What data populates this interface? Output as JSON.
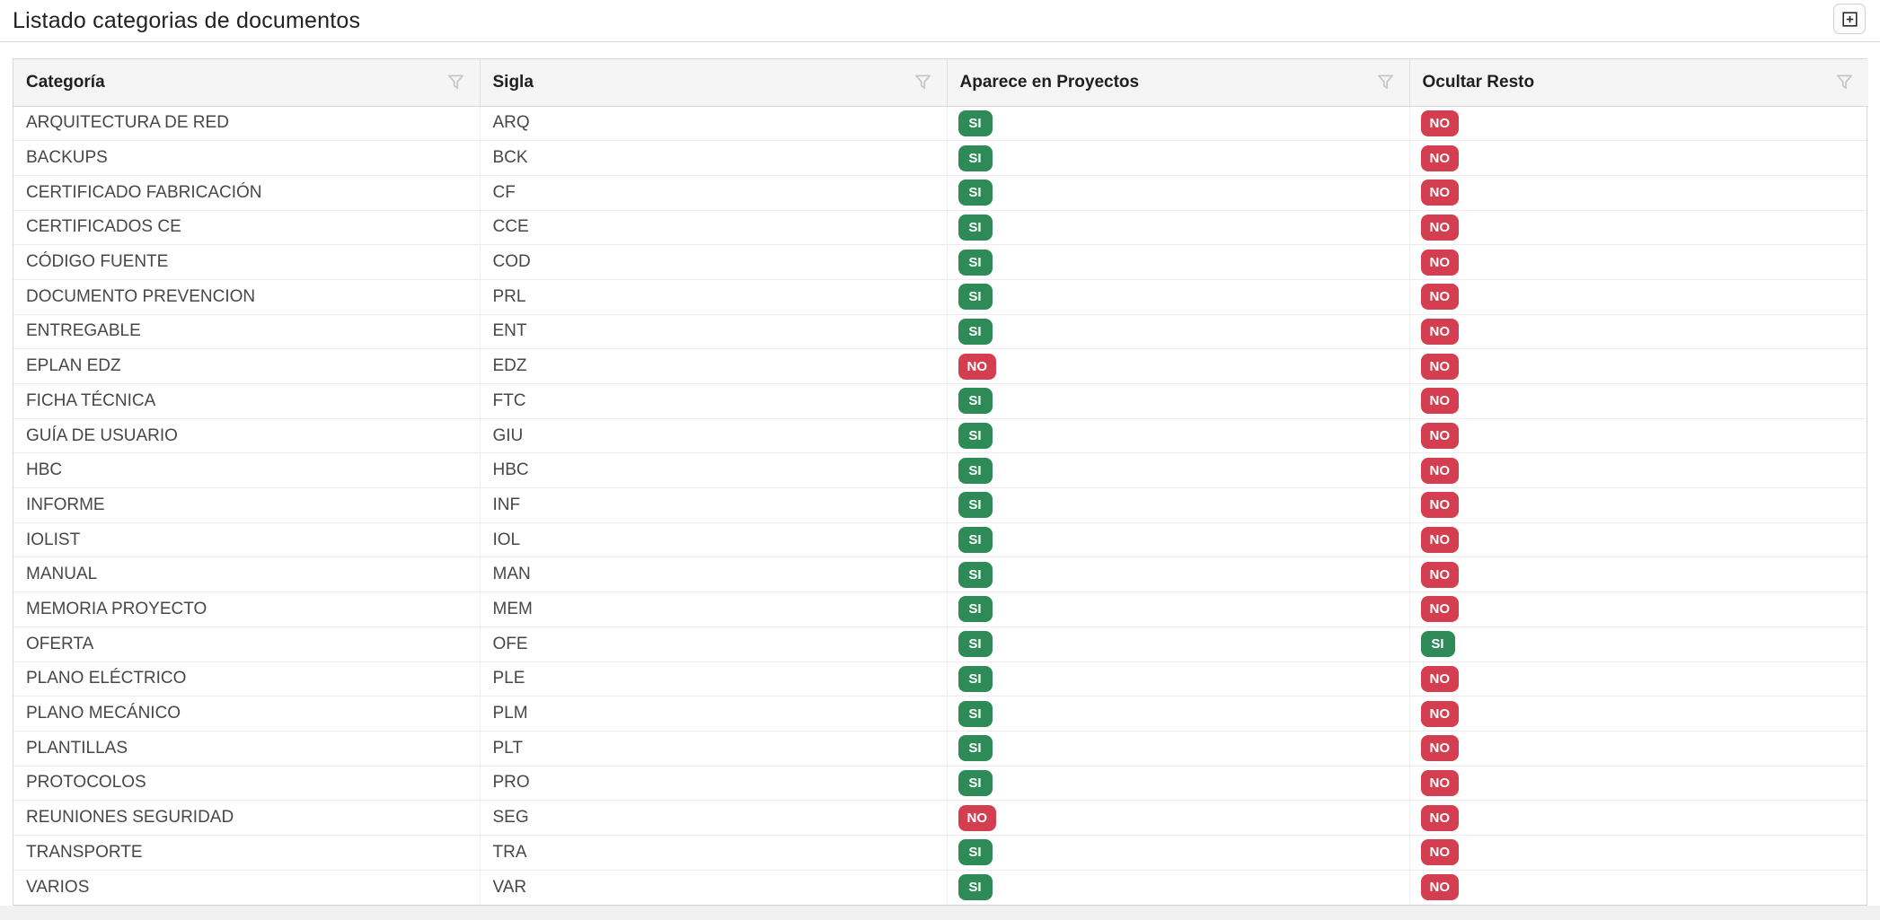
{
  "header": {
    "title": "Listado categorias de documentos",
    "expand_button": {
      "icon": "expand-plus-icon"
    }
  },
  "table": {
    "columns": [
      {
        "key": "categoria",
        "label": "Categoría",
        "filter_icon": "filter-icon"
      },
      {
        "key": "sigla",
        "label": "Sigla",
        "filter_icon": "filter-icon"
      },
      {
        "key": "aparece",
        "label": "Aparece en Proyectos",
        "filter_icon": "filter-icon"
      },
      {
        "key": "ocultar",
        "label": "Ocultar Resto",
        "filter_icon": "filter-icon"
      }
    ],
    "rows": [
      {
        "categoria": "ARQUITECTURA DE RED",
        "sigla": "ARQ",
        "aparece": "SI",
        "ocultar": "NO"
      },
      {
        "categoria": "BACKUPS",
        "sigla": "BCK",
        "aparece": "SI",
        "ocultar": "NO"
      },
      {
        "categoria": "CERTIFICADO FABRICACIÓN",
        "sigla": "CF",
        "aparece": "SI",
        "ocultar": "NO"
      },
      {
        "categoria": "CERTIFICADOS CE",
        "sigla": "CCE",
        "aparece": "SI",
        "ocultar": "NO"
      },
      {
        "categoria": "CÓDIGO FUENTE",
        "sigla": "COD",
        "aparece": "SI",
        "ocultar": "NO"
      },
      {
        "categoria": "DOCUMENTO PREVENCION",
        "sigla": "PRL",
        "aparece": "SI",
        "ocultar": "NO"
      },
      {
        "categoria": "ENTREGABLE",
        "sigla": "ENT",
        "aparece": "SI",
        "ocultar": "NO"
      },
      {
        "categoria": "EPLAN EDZ",
        "sigla": "EDZ",
        "aparece": "NO",
        "ocultar": "NO"
      },
      {
        "categoria": "FICHA TÉCNICA",
        "sigla": "FTC",
        "aparece": "SI",
        "ocultar": "NO"
      },
      {
        "categoria": "GUÍA DE USUARIO",
        "sigla": "GIU",
        "aparece": "SI",
        "ocultar": "NO"
      },
      {
        "categoria": "HBC",
        "sigla": "HBC",
        "aparece": "SI",
        "ocultar": "NO"
      },
      {
        "categoria": "INFORME",
        "sigla": "INF",
        "aparece": "SI",
        "ocultar": "NO"
      },
      {
        "categoria": "IOLIST",
        "sigla": "IOL",
        "aparece": "SI",
        "ocultar": "NO"
      },
      {
        "categoria": "MANUAL",
        "sigla": "MAN",
        "aparece": "SI",
        "ocultar": "NO"
      },
      {
        "categoria": "MEMORIA PROYECTO",
        "sigla": "MEM",
        "aparece": "SI",
        "ocultar": "NO"
      },
      {
        "categoria": "OFERTA",
        "sigla": "OFE",
        "aparece": "SI",
        "ocultar": "SI"
      },
      {
        "categoria": "PLANO ELÉCTRICO",
        "sigla": "PLE",
        "aparece": "SI",
        "ocultar": "NO"
      },
      {
        "categoria": "PLANO MECÁNICO",
        "sigla": "PLM",
        "aparece": "SI",
        "ocultar": "NO"
      },
      {
        "categoria": "PLANTILLAS",
        "sigla": "PLT",
        "aparece": "SI",
        "ocultar": "NO"
      },
      {
        "categoria": "PROTOCOLOS",
        "sigla": "PRO",
        "aparece": "SI",
        "ocultar": "NO"
      },
      {
        "categoria": "REUNIONES SEGURIDAD",
        "sigla": "SEG",
        "aparece": "NO",
        "ocultar": "NO"
      },
      {
        "categoria": "TRANSPORTE",
        "sigla": "TRA",
        "aparece": "SI",
        "ocultar": "NO"
      },
      {
        "categoria": "VARIOS",
        "sigla": "VAR",
        "aparece": "SI",
        "ocultar": "NO"
      }
    ],
    "badge_values": {
      "yes": "SI",
      "no": "NO"
    }
  },
  "colors": {
    "badge_yes": "#2e8a57",
    "badge_no": "#d33e50",
    "header_bg": "#f5f5f5"
  }
}
